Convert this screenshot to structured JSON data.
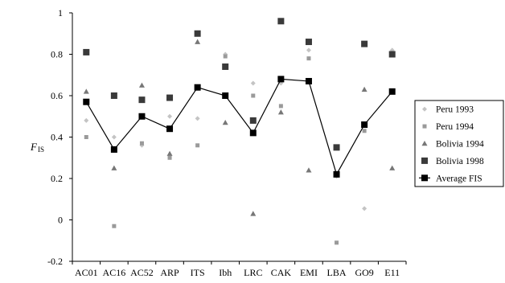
{
  "chart_data": {
    "type": "scatter",
    "ylabel": "F",
    "ylabel_subscript": "IS",
    "ylim": [
      -0.2,
      1
    ],
    "yticks": [
      -0.2,
      0,
      0.2,
      0.4,
      0.6,
      0.8,
      1
    ],
    "ytick_labels": [
      "-0.2",
      "0",
      "0.2",
      "0.4",
      "0.6",
      "0.8",
      "1"
    ],
    "categories": [
      "AC01",
      "AC16",
      "AC52",
      "ARP",
      "ITS",
      "Ibh",
      "LRC",
      "CAK",
      "EMI",
      "LBA",
      "GO9",
      "E11"
    ],
    "grid": false,
    "legend_position": "right",
    "series": [
      {
        "name": "Peru 1993",
        "marker": "diamond",
        "color": "#c4c4c4",
        "values": [
          0.48,
          0.4,
          0.36,
          0.5,
          0.49,
          0.8,
          0.66,
          0.66,
          0.82,
          0.21,
          0.055,
          0.82
        ]
      },
      {
        "name": "Peru 1994",
        "marker": "square-small",
        "color": "#9a9a9a",
        "values": [
          0.4,
          -0.03,
          0.37,
          0.3,
          0.36,
          0.79,
          0.6,
          0.55,
          0.78,
          -0.11,
          0.43,
          null
        ]
      },
      {
        "name": "Bolivia 1994",
        "marker": "triangle",
        "color": "#777777",
        "values": [
          0.62,
          0.25,
          0.65,
          0.32,
          0.86,
          0.47,
          0.03,
          0.52,
          0.24,
          null,
          0.63,
          0.25
        ]
      },
      {
        "name": "Bolivia 1998",
        "marker": "square",
        "color": "#3a3a3a",
        "values": [
          0.81,
          0.6,
          0.58,
          0.59,
          0.9,
          0.74,
          0.48,
          0.96,
          0.86,
          0.35,
          0.85,
          0.8
        ]
      },
      {
        "name": "Average FIS",
        "marker": "square-line",
        "color": "#000000",
        "values": [
          0.57,
          0.34,
          0.5,
          0.44,
          0.64,
          0.6,
          0.42,
          0.68,
          0.67,
          0.22,
          0.46,
          0.62
        ]
      }
    ]
  }
}
